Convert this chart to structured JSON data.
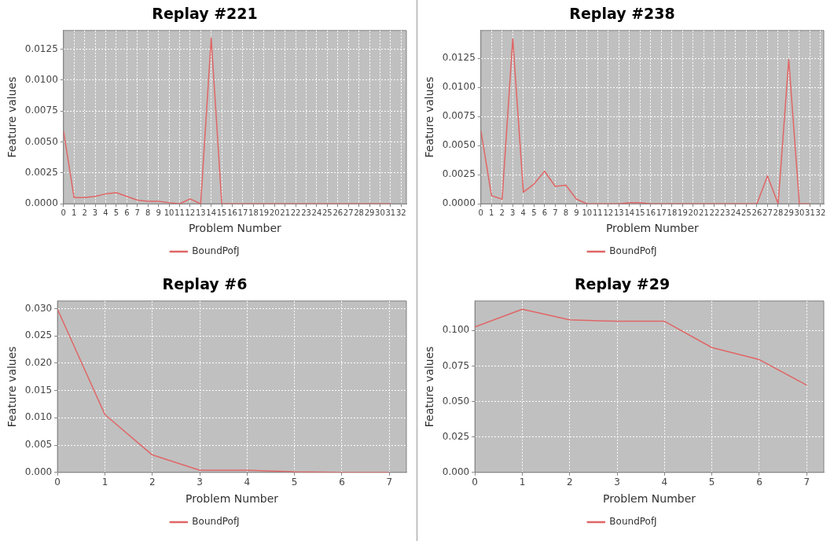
{
  "chart_data": [
    {
      "type": "line",
      "title": "Replay #221",
      "xlabel": "Problem Number",
      "ylabel": "Feature values",
      "x": [
        0,
        1,
        2,
        3,
        4,
        5,
        6,
        7,
        8,
        9,
        10,
        11,
        12,
        13,
        14,
        15,
        16,
        17,
        18,
        19,
        20,
        21,
        22,
        23,
        24,
        25,
        26,
        27,
        28,
        29,
        30,
        31
      ],
      "series": [
        {
          "name": "BoundPofJ",
          "color": "#e06666",
          "values": [
            0.0059,
            0.0005,
            0.0005,
            0.0006,
            0.0008,
            0.0009,
            0.0006,
            0.0003,
            0.0002,
            0.0002,
            0.0001,
            0,
            0.0004,
            0,
            0.0134,
            0,
            0,
            0,
            0,
            0,
            0,
            0,
            0,
            0,
            0,
            0,
            0,
            0,
            0,
            0,
            0,
            0
          ]
        }
      ],
      "xlim": [
        0,
        32.5
      ],
      "xticks": [
        0,
        1,
        2,
        3,
        4,
        5,
        6,
        7,
        8,
        9,
        10,
        11,
        12,
        13,
        14,
        15,
        16,
        17,
        18,
        19,
        20,
        21,
        22,
        23,
        24,
        25,
        26,
        27,
        28,
        29,
        30,
        31,
        32
      ],
      "ylim": [
        0,
        0.014
      ],
      "yticks": [
        {
          "value": 0,
          "label": "0.0000"
        },
        {
          "value": 0.0025,
          "label": "0.0025"
        },
        {
          "value": 0.005,
          "label": "0.0050"
        },
        {
          "value": 0.0075,
          "label": "0.0075"
        },
        {
          "value": 0.01,
          "label": "0.0100"
        },
        {
          "value": 0.0125,
          "label": "0.0125"
        }
      ],
      "grid": true,
      "legend": "bottom"
    },
    {
      "type": "line",
      "title": "Replay #238",
      "xlabel": "Problem Number",
      "ylabel": "Feature values",
      "x": [
        0,
        1,
        2,
        3,
        4,
        5,
        6,
        7,
        8,
        9,
        10,
        11,
        12,
        13,
        14,
        15,
        16,
        17,
        18,
        19,
        20,
        21,
        22,
        23,
        24,
        25,
        26,
        27,
        28,
        29,
        30,
        31
      ],
      "series": [
        {
          "name": "BoundPofJ",
          "color": "#e06666",
          "values": [
            0.0063,
            0.0007,
            0.0004,
            0.0142,
            0.001,
            0.0017,
            0.0028,
            0.0015,
            0.0016,
            0.0004,
            0,
            0,
            0,
            0,
            0.0001,
            0.0001,
            0,
            0,
            0,
            0,
            0,
            0,
            0,
            0,
            0,
            0,
            0,
            0.0024,
            0,
            0.0124,
            0,
            0
          ]
        }
      ],
      "xlim": [
        0,
        32.3
      ],
      "xticks": [
        0,
        1,
        2,
        3,
        4,
        5,
        6,
        7,
        8,
        9,
        10,
        11,
        12,
        13,
        14,
        15,
        16,
        17,
        18,
        19,
        20,
        21,
        22,
        23,
        24,
        25,
        26,
        27,
        28,
        29,
        30,
        31,
        32
      ],
      "ylim": [
        0,
        0.0149
      ],
      "yticks": [
        {
          "value": 0,
          "label": "0.0000"
        },
        {
          "value": 0.0025,
          "label": "0.0025"
        },
        {
          "value": 0.005,
          "label": "0.0050"
        },
        {
          "value": 0.0075,
          "label": "0.0075"
        },
        {
          "value": 0.01,
          "label": "0.0100"
        },
        {
          "value": 0.0125,
          "label": "0.0125"
        }
      ],
      "grid": true,
      "legend": "bottom"
    },
    {
      "type": "line",
      "title": "Replay #6",
      "xlabel": "Problem Number",
      "ylabel": "Feature values",
      "x": [
        0,
        1,
        2,
        3,
        4,
        5,
        6,
        7
      ],
      "series": [
        {
          "name": "BoundPofJ",
          "color": "#e06666",
          "values": [
            0.0299,
            0.0106,
            0.0032,
            0.0004,
            0.0004,
            0.0001,
            0,
            0
          ]
        }
      ],
      "xlim": [
        0,
        7.36
      ],
      "xticks": [
        0,
        1,
        2,
        3,
        4,
        5,
        6,
        7
      ],
      "ylim": [
        0,
        0.0314
      ],
      "yticks": [
        {
          "value": 0,
          "label": "0.000"
        },
        {
          "value": 0.005,
          "label": "0.005"
        },
        {
          "value": 0.01,
          "label": "0.010"
        },
        {
          "value": 0.015,
          "label": "0.015"
        },
        {
          "value": 0.02,
          "label": "0.020"
        },
        {
          "value": 0.025,
          "label": "0.025"
        },
        {
          "value": 0.03,
          "label": "0.030"
        }
      ],
      "grid": true,
      "legend": "bottom"
    },
    {
      "type": "line",
      "title": "Replay #29",
      "xlabel": "Problem Number",
      "ylabel": "Feature values",
      "x": [
        0,
        1,
        2,
        3,
        4,
        5,
        6,
        7
      ],
      "series": [
        {
          "name": "BoundPofJ",
          "color": "#e06666",
          "values": [
            0.1025,
            0.115,
            0.1075,
            0.1065,
            0.1065,
            0.088,
            0.0795,
            0.0615
          ]
        }
      ],
      "xlim": [
        0,
        7.36
      ],
      "xticks": [
        0,
        1,
        2,
        3,
        4,
        5,
        6,
        7
      ],
      "ylim": [
        0,
        0.1208
      ],
      "yticks": [
        {
          "value": 0,
          "label": "0.000"
        },
        {
          "value": 0.025,
          "label": "0.025"
        },
        {
          "value": 0.05,
          "label": "0.050"
        },
        {
          "value": 0.075,
          "label": "0.075"
        },
        {
          "value": 0.1,
          "label": "0.100"
        }
      ],
      "grid": true,
      "legend": "bottom"
    }
  ]
}
